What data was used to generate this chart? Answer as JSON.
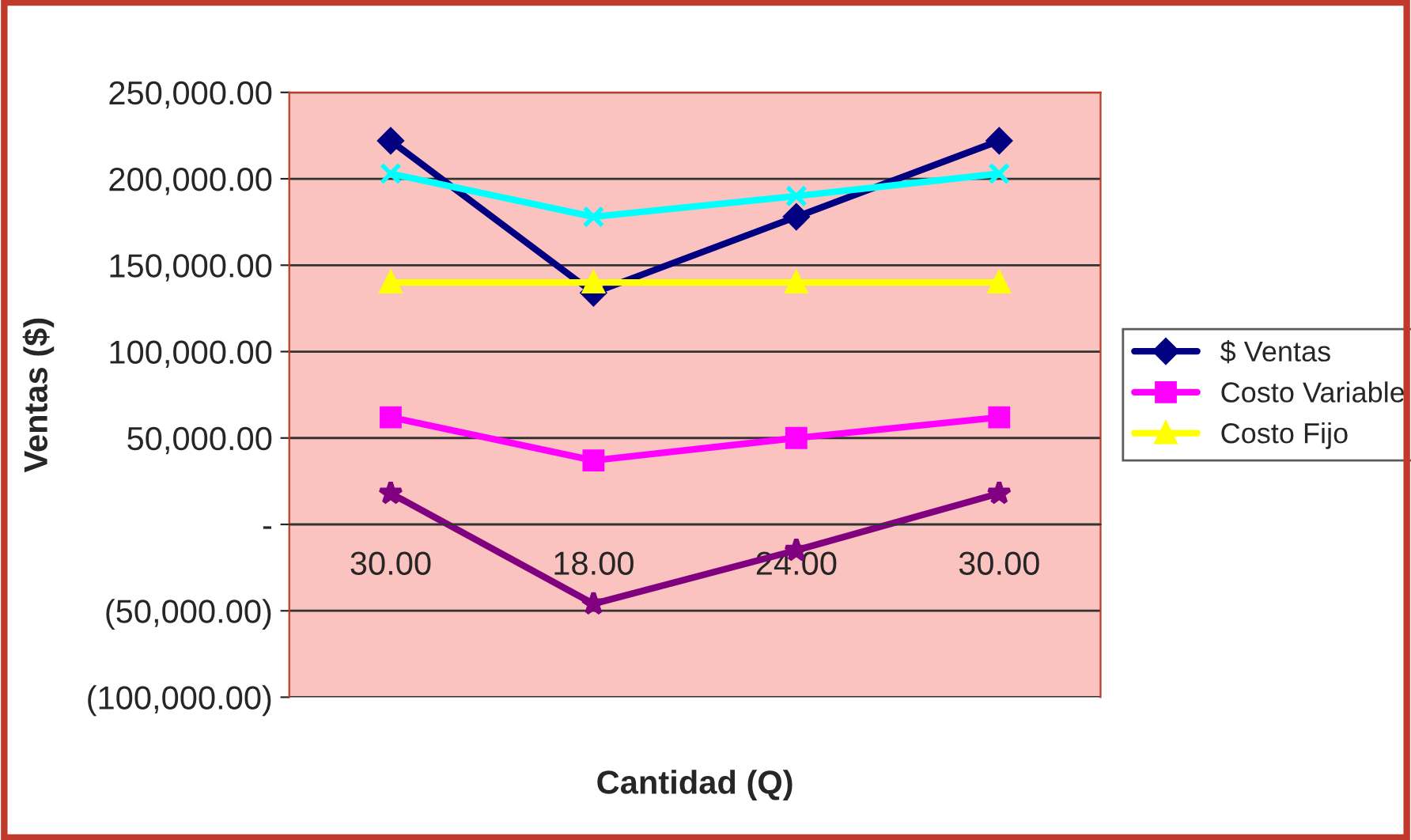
{
  "chart_data": {
    "type": "line",
    "xlabel": "Cantidad (Q)",
    "ylabel": "Ventas ($)",
    "categories": [
      "30.00",
      "18.00",
      "24.00",
      "30.00"
    ],
    "series": [
      {
        "name": "$ Ventas",
        "color": "#000080",
        "marker": "diamond",
        "values": [
          222000,
          134000,
          178000,
          222000
        ]
      },
      {
        "name": "Costo Variable",
        "color": "#ff00ff",
        "marker": "square",
        "values": [
          62000,
          37000,
          50000,
          62000
        ]
      },
      {
        "name": "Costo Fijo",
        "color": "#ffff00",
        "marker": "triangle",
        "values": [
          140000,
          140000,
          140000,
          140000
        ]
      },
      {
        "color": "#00ffff",
        "marker": "cross",
        "values": [
          203000,
          178000,
          190000,
          203000
        ]
      },
      {
        "color": "#800080",
        "marker": "star",
        "values": [
          18000,
          -46000,
          -15000,
          18000
        ]
      }
    ],
    "ylim": [
      -100000,
      250000
    ],
    "yticks": [
      {
        "value": -100000,
        "label": "(100,000.00)"
      },
      {
        "value": -50000,
        "label": "(50,000.00)"
      },
      {
        "value": 0,
        "label": "-"
      },
      {
        "value": 50000,
        "label": "50,000.00"
      },
      {
        "value": 100000,
        "label": "100,000.00"
      },
      {
        "value": 150000,
        "label": "150,000.00"
      },
      {
        "value": 200000,
        "label": "200,000.00"
      },
      {
        "value": 250000,
        "label": "250,000.00"
      }
    ],
    "grid": "y",
    "legend": "right"
  }
}
